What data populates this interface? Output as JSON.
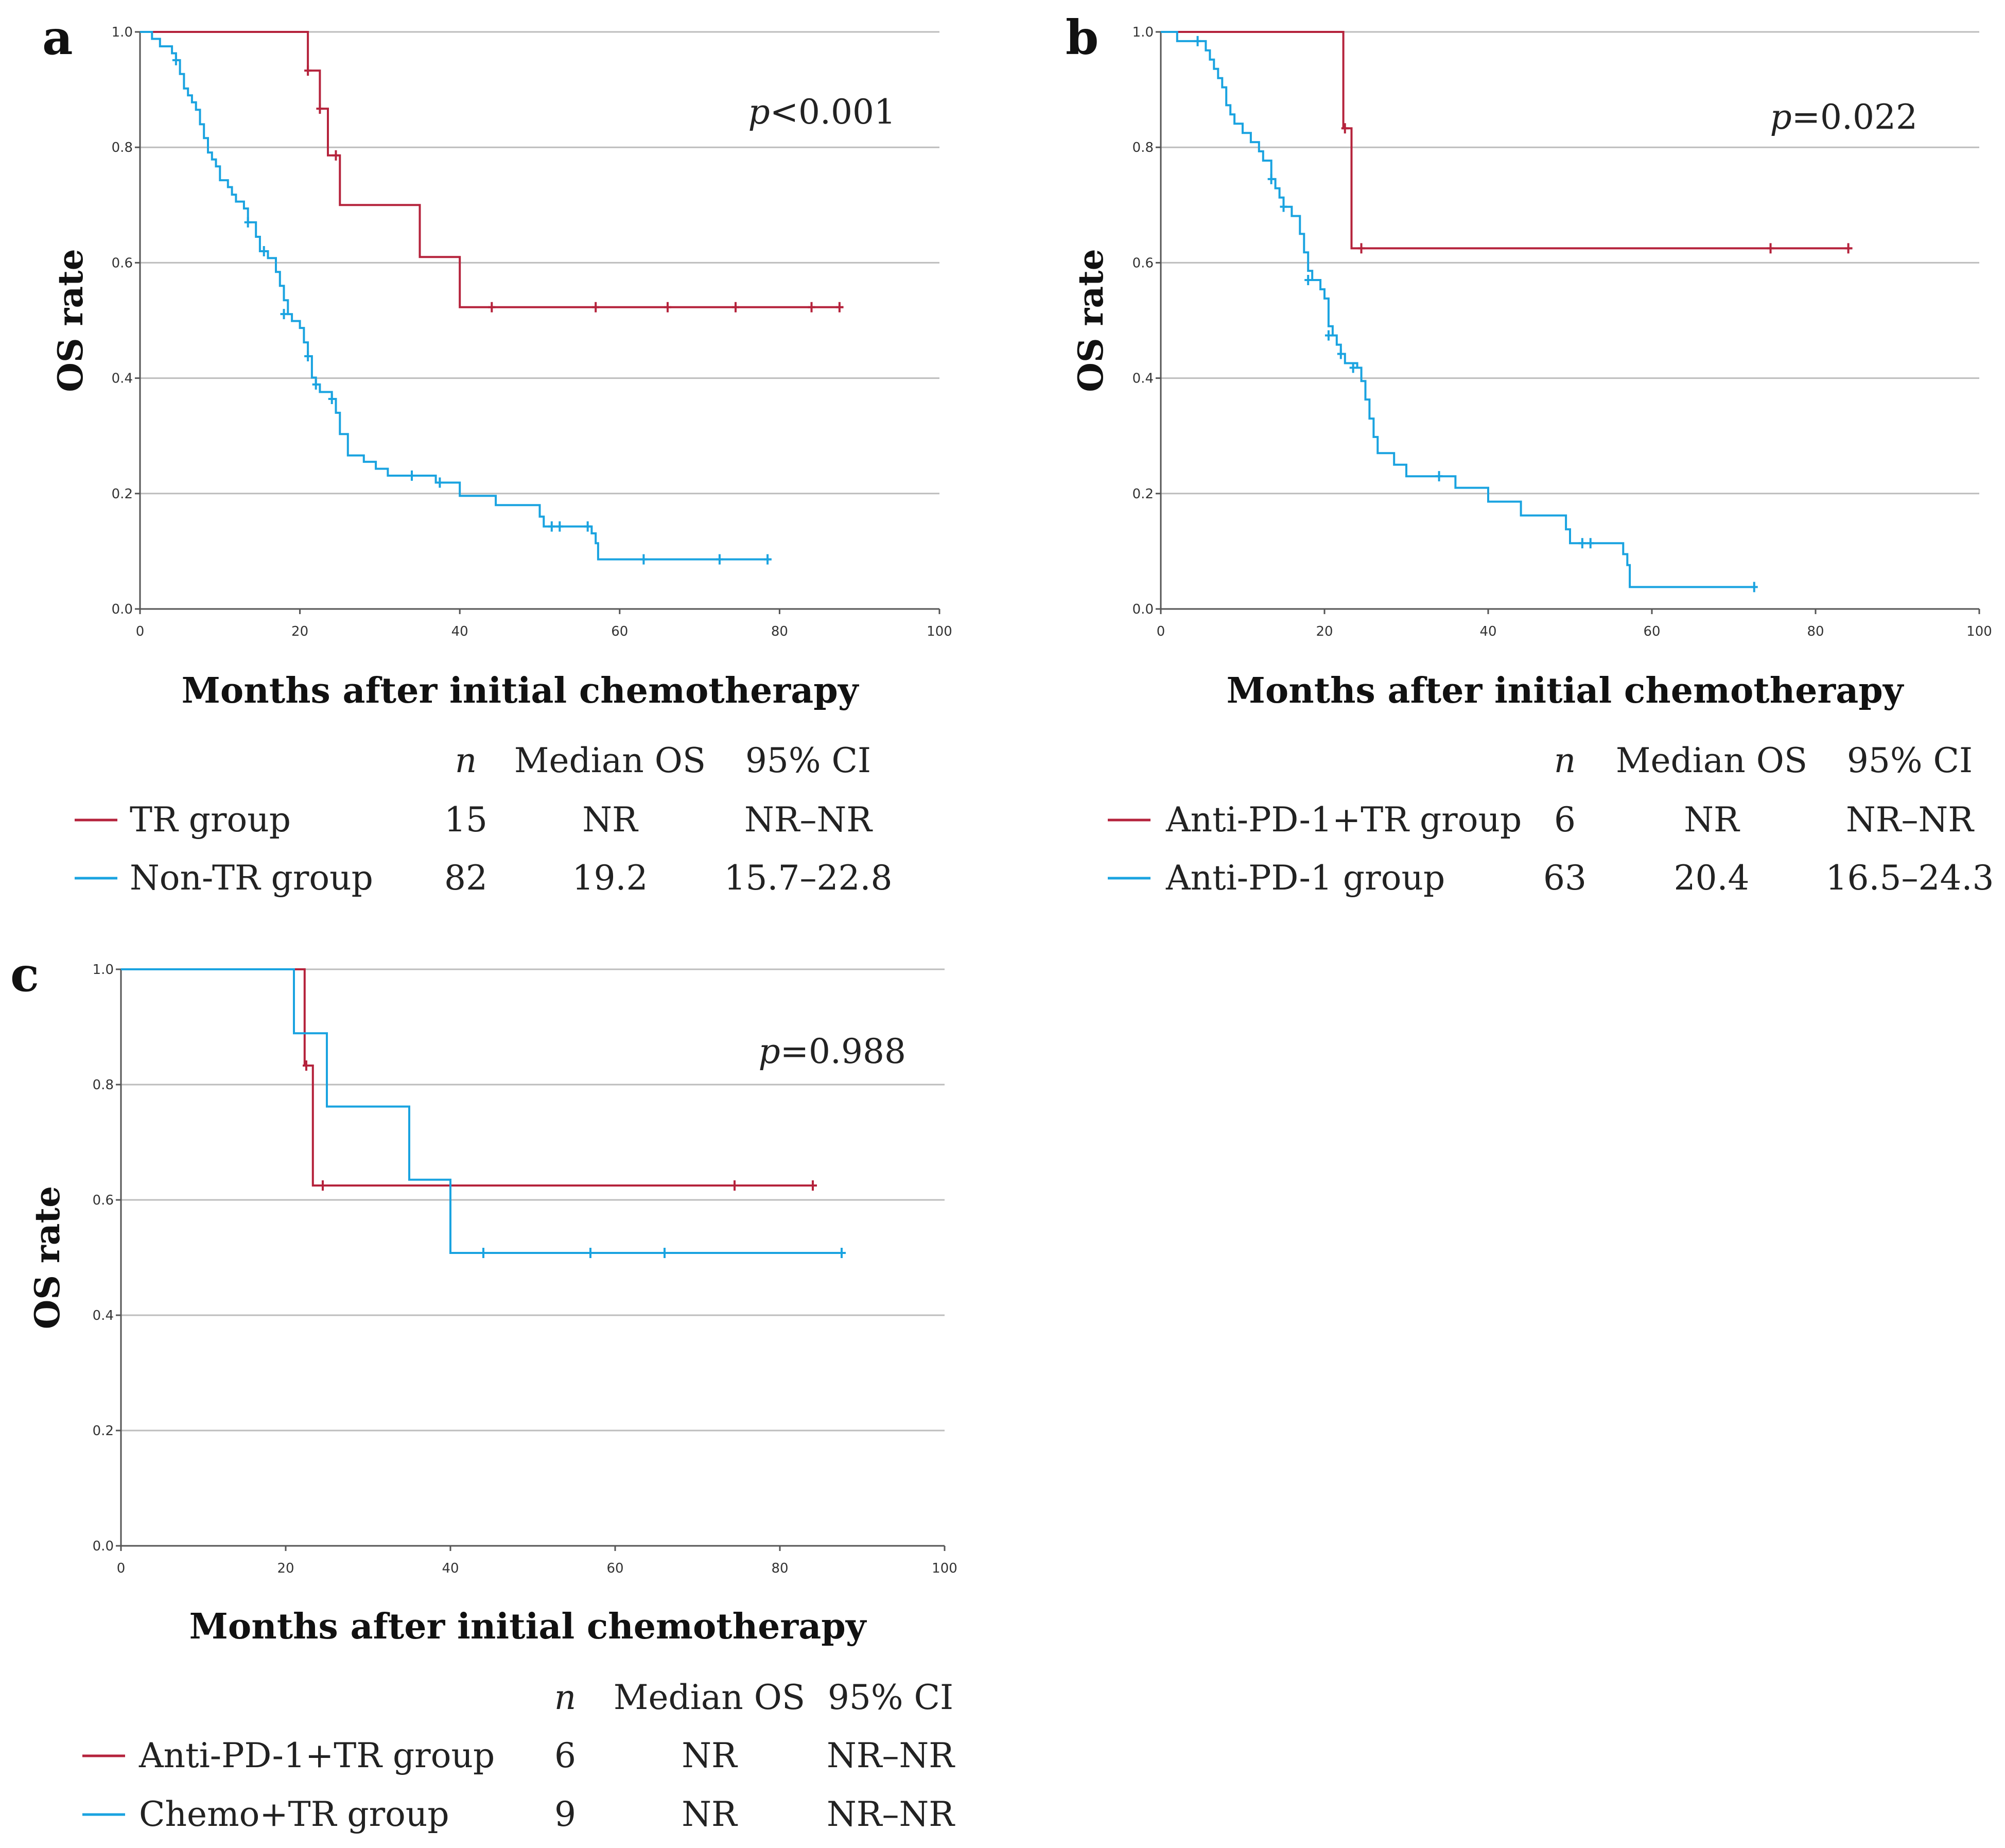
{
  "chart_data": [
    {
      "type": "line",
      "panel": "a",
      "title": "",
      "xlabel": "Months after initial chemotherapy",
      "ylabel": "OS rate",
      "xlim": [
        0,
        100
      ],
      "ylim": [
        0,
        1
      ],
      "xticks": [
        "0",
        "20",
        "40",
        "60",
        "80",
        "100"
      ],
      "yticks": [
        "0.0",
        "0.2",
        "0.4",
        "0.6",
        "0.8",
        "1.0"
      ],
      "p_prefix": "p",
      "p_rest": "<0.001",
      "legend": {
        "headers": {
          "n": "n",
          "median": "Median OS",
          "ci": "95% CI"
        },
        "rows": [
          {
            "label": "TR group",
            "n": "15",
            "median": "NR",
            "ci": "NR–NR",
            "color": "#b5233c"
          },
          {
            "label": "Non-TR group",
            "n": "82",
            "median": "19.2",
            "ci": "15.7–22.8",
            "color": "#1aa3e0"
          }
        ]
      },
      "series": [
        {
          "name": "TR group",
          "color": "#b5233c",
          "steps": [
            [
              0,
              1.0
            ],
            [
              21,
              0.933
            ],
            [
              22.5,
              0.867
            ],
            [
              23.5,
              0.786
            ],
            [
              25,
              0.7
            ],
            [
              35,
              0.61
            ],
            [
              40,
              0.523
            ],
            [
              88,
              0.523
            ]
          ],
          "censors": [
            [
              21,
              0.933
            ],
            [
              22.5,
              0.867
            ],
            [
              24.5,
              0.786
            ],
            [
              44,
              0.523
            ],
            [
              57,
              0.523
            ],
            [
              66,
              0.523
            ],
            [
              74.5,
              0.523
            ],
            [
              84,
              0.523
            ],
            [
              87.5,
              0.523
            ]
          ]
        },
        {
          "name": "Non-TR group",
          "color": "#1aa3e0",
          "steps": [
            [
              0,
              1.0
            ],
            [
              1.5,
              0.988
            ],
            [
              2.5,
              0.975
            ],
            [
              4,
              0.963
            ],
            [
              4.5,
              0.951
            ],
            [
              5,
              0.927
            ],
            [
              5.5,
              0.902
            ],
            [
              6,
              0.89
            ],
            [
              6.5,
              0.878
            ],
            [
              7,
              0.865
            ],
            [
              7.5,
              0.84
            ],
            [
              8,
              0.816
            ],
            [
              8.5,
              0.791
            ],
            [
              9,
              0.779
            ],
            [
              9.5,
              0.767
            ],
            [
              10,
              0.743
            ],
            [
              11,
              0.731
            ],
            [
              11.5,
              0.718
            ],
            [
              12,
              0.706
            ],
            [
              13,
              0.694
            ],
            [
              13.5,
              0.67
            ],
            [
              14.5,
              0.645
            ],
            [
              15,
              0.62
            ],
            [
              16,
              0.608
            ],
            [
              17,
              0.584
            ],
            [
              17.5,
              0.56
            ],
            [
              18,
              0.535
            ],
            [
              18.5,
              0.511
            ],
            [
              19,
              0.499
            ],
            [
              20,
              0.487
            ],
            [
              20.5,
              0.462
            ],
            [
              21,
              0.438
            ],
            [
              21.5,
              0.401
            ],
            [
              22,
              0.389
            ],
            [
              22.5,
              0.376
            ],
            [
              24,
              0.364
            ],
            [
              24.5,
              0.34
            ],
            [
              25,
              0.303
            ],
            [
              26,
              0.266
            ],
            [
              28,
              0.255
            ],
            [
              29.5,
              0.243
            ],
            [
              31,
              0.231
            ],
            [
              37,
              0.219
            ],
            [
              40,
              0.196
            ],
            [
              44.5,
              0.18
            ],
            [
              50,
              0.16
            ],
            [
              50.5,
              0.143
            ],
            [
              56.5,
              0.131
            ],
            [
              57,
              0.114
            ],
            [
              57.3,
              0.086
            ],
            [
              79,
              0.086
            ]
          ],
          "censors": [
            [
              4.5,
              0.951
            ],
            [
              13.5,
              0.67
            ],
            [
              15.5,
              0.62
            ],
            [
              18,
              0.511
            ],
            [
              21,
              0.438
            ],
            [
              22,
              0.389
            ],
            [
              24,
              0.364
            ],
            [
              34,
              0.231
            ],
            [
              37.5,
              0.219
            ],
            [
              51.5,
              0.143
            ],
            [
              52.5,
              0.143
            ],
            [
              56,
              0.143
            ],
            [
              63,
              0.086
            ],
            [
              72.5,
              0.086
            ],
            [
              78.5,
              0.086
            ]
          ]
        }
      ]
    },
    {
      "type": "line",
      "panel": "b",
      "title": "",
      "xlabel": "Months after initial chemotherapy",
      "ylabel": "OS rate",
      "xlim": [
        0,
        100
      ],
      "ylim": [
        0,
        1
      ],
      "xticks": [
        "0",
        "20",
        "40",
        "60",
        "80",
        "100"
      ],
      "yticks": [
        "0.0",
        "0.2",
        "0.4",
        "0.6",
        "0.8",
        "1.0"
      ],
      "p_prefix": "p",
      "p_rest": "=0.022",
      "legend": {
        "headers": {
          "n": "n",
          "median": "Median OS",
          "ci": "95% CI"
        },
        "rows": [
          {
            "label": "Anti-PD-1+TR group",
            "n": "6",
            "median": "NR",
            "ci": "NR–NR",
            "color": "#b5233c"
          },
          {
            "label": "Anti-PD-1 group",
            "n": "63",
            "median": "20.4",
            "ci": "16.5–24.3",
            "color": "#1aa3e0"
          }
        ]
      },
      "series": [
        {
          "name": "Anti-PD-1+TR group",
          "color": "#b5233c",
          "steps": [
            [
              0,
              1.0
            ],
            [
              22.3,
              0.833
            ],
            [
              23.3,
              0.625
            ],
            [
              84.5,
              0.625
            ]
          ],
          "censors": [
            [
              22.5,
              0.833
            ],
            [
              24.5,
              0.625
            ],
            [
              74.5,
              0.625
            ],
            [
              84,
              0.625
            ]
          ]
        },
        {
          "name": "Anti-PD-1 group",
          "color": "#1aa3e0",
          "steps": [
            [
              0,
              1.0
            ],
            [
              2,
              0.984
            ],
            [
              4,
              0.984
            ],
            [
              5.5,
              0.968
            ],
            [
              6,
              0.952
            ],
            [
              6.5,
              0.936
            ],
            [
              7,
              0.92
            ],
            [
              7.5,
              0.904
            ],
            [
              8,
              0.873
            ],
            [
              8.5,
              0.857
            ],
            [
              9,
              0.841
            ],
            [
              10,
              0.825
            ],
            [
              11,
              0.809
            ],
            [
              12,
              0.793
            ],
            [
              12.5,
              0.777
            ],
            [
              13.5,
              0.745
            ],
            [
              14,
              0.729
            ],
            [
              14.5,
              0.713
            ],
            [
              15,
              0.697
            ],
            [
              16,
              0.681
            ],
            [
              17,
              0.65
            ],
            [
              17.5,
              0.618
            ],
            [
              18,
              0.586
            ],
            [
              18.5,
              0.57
            ],
            [
              19.5,
              0.554
            ],
            [
              20,
              0.538
            ],
            [
              20.5,
              0.49
            ],
            [
              21,
              0.474
            ],
            [
              21.5,
              0.458
            ],
            [
              22,
              0.442
            ],
            [
              22.5,
              0.426
            ],
            [
              24,
              0.418
            ],
            [
              24.5,
              0.395
            ],
            [
              25,
              0.363
            ],
            [
              25.5,
              0.33
            ],
            [
              26,
              0.298
            ],
            [
              26.5,
              0.27
            ],
            [
              28.5,
              0.25
            ],
            [
              30,
              0.23
            ],
            [
              36,
              0.21
            ],
            [
              40,
              0.186
            ],
            [
              44,
              0.162
            ],
            [
              49.5,
              0.138
            ],
            [
              50,
              0.114
            ],
            [
              56.5,
              0.095
            ],
            [
              57,
              0.076
            ],
            [
              57.3,
              0.038
            ],
            [
              72.5,
              0.038
            ]
          ],
          "censors": [
            [
              4.5,
              0.984
            ],
            [
              13.5,
              0.745
            ],
            [
              15,
              0.697
            ],
            [
              18,
              0.57
            ],
            [
              20.5,
              0.474
            ],
            [
              22,
              0.442
            ],
            [
              23.5,
              0.418
            ],
            [
              34,
              0.23
            ],
            [
              51.5,
              0.114
            ],
            [
              52.5,
              0.114
            ],
            [
              72.5,
              0.038
            ]
          ]
        }
      ]
    },
    {
      "type": "line",
      "panel": "c",
      "title": "",
      "xlabel": "Months after initial chemotherapy",
      "ylabel": "OS rate",
      "xlim": [
        0,
        100
      ],
      "ylim": [
        0,
        1
      ],
      "xticks": [
        "0",
        "20",
        "40",
        "60",
        "80",
        "100"
      ],
      "yticks": [
        "0.0",
        "0.2",
        "0.4",
        "0.6",
        "0.8",
        "1.0"
      ],
      "p_prefix": "p",
      "p_rest": "=0.988",
      "legend": {
        "headers": {
          "n": "n",
          "median": "Median OS",
          "ci": "95% CI"
        },
        "rows": [
          {
            "label": "Anti-PD-1+TR group",
            "n": "6",
            "median": "NR",
            "ci": "NR–NR",
            "color": "#b5233c"
          },
          {
            "label": "Chemo+TR group",
            "n": "9",
            "median": "NR",
            "ci": "NR–NR",
            "color": "#1aa3e0"
          }
        ]
      },
      "series": [
        {
          "name": "Anti-PD-1+TR group",
          "color": "#b5233c",
          "steps": [
            [
              0,
              1.0
            ],
            [
              22.3,
              0.833
            ],
            [
              23.3,
              0.625
            ],
            [
              84.5,
              0.625
            ]
          ],
          "censors": [
            [
              22.5,
              0.833
            ],
            [
              24.5,
              0.625
            ],
            [
              74.5,
              0.625
            ],
            [
              84,
              0.625
            ]
          ]
        },
        {
          "name": "Chemo+TR group",
          "color": "#1aa3e0",
          "steps": [
            [
              0,
              1.0
            ],
            [
              21,
              0.889
            ],
            [
              25,
              0.762
            ],
            [
              35,
              0.635
            ],
            [
              40,
              0.508
            ],
            [
              88,
              0.508
            ]
          ],
          "censors": [
            [
              44,
              0.508
            ],
            [
              57,
              0.508
            ],
            [
              66,
              0.508
            ],
            [
              87.5,
              0.508
            ]
          ]
        }
      ]
    }
  ]
}
